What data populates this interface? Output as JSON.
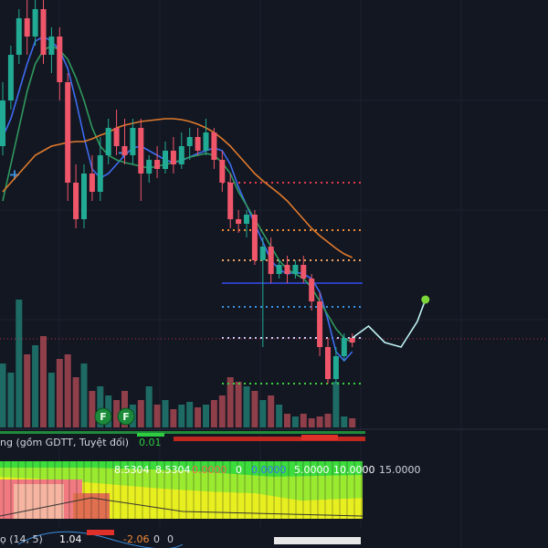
{
  "chart_data": {
    "type": "candlestick",
    "ylim": [
      0,
      600
    ],
    "candles": [
      [
        440,
        510,
        430,
        490
      ],
      [
        490,
        550,
        480,
        540
      ],
      [
        540,
        590,
        530,
        580
      ],
      [
        580,
        600,
        540,
        560
      ],
      [
        560,
        600,
        550,
        590
      ],
      [
        590,
        600,
        530,
        540
      ],
      [
        540,
        570,
        520,
        560
      ],
      [
        560,
        570,
        490,
        510
      ],
      [
        510,
        520,
        380,
        400
      ],
      [
        400,
        420,
        350,
        360
      ],
      [
        360,
        420,
        350,
        410
      ],
      [
        410,
        430,
        380,
        390
      ],
      [
        390,
        450,
        380,
        430
      ],
      [
        430,
        470,
        420,
        460
      ],
      [
        460,
        480,
        430,
        440
      ],
      [
        440,
        470,
        420,
        430
      ],
      [
        430,
        470,
        420,
        460
      ],
      [
        460,
        470,
        380,
        410
      ],
      [
        410,
        430,
        400,
        425
      ],
      [
        425,
        440,
        405,
        415
      ],
      [
        415,
        445,
        410,
        435
      ],
      [
        435,
        450,
        410,
        420
      ],
      [
        420,
        455,
        415,
        440
      ],
      [
        440,
        460,
        425,
        450
      ],
      [
        450,
        460,
        430,
        435
      ],
      [
        435,
        470,
        430,
        455
      ],
      [
        455,
        460,
        415,
        425
      ],
      [
        425,
        435,
        390,
        400
      ],
      [
        400,
        410,
        350,
        360
      ],
      [
        360,
        370,
        345,
        355
      ],
      [
        355,
        370,
        340,
        365
      ],
      [
        365,
        370,
        310,
        315
      ],
      [
        315,
        340,
        220,
        330
      ],
      [
        330,
        340,
        290,
        300
      ],
      [
        300,
        315,
        295,
        310
      ],
      [
        310,
        320,
        290,
        300
      ],
      [
        300,
        315,
        295,
        310
      ],
      [
        310,
        320,
        290,
        295
      ],
      [
        295,
        300,
        260,
        270
      ],
      [
        270,
        280,
        210,
        220
      ],
      [
        220,
        230,
        180,
        185
      ],
      [
        185,
        220,
        180,
        210
      ],
      [
        210,
        235,
        205,
        230
      ],
      [
        230,
        235,
        220,
        225
      ]
    ],
    "up_color": "#22ab94",
    "down_color": "#f0566a",
    "volume": [
      70,
      60,
      140,
      80,
      90,
      100,
      60,
      75,
      80,
      55,
      70,
      40,
      45,
      35,
      30,
      40,
      25,
      30,
      45,
      25,
      30,
      20,
      25,
      28,
      22,
      25,
      30,
      35,
      55,
      50,
      45,
      40,
      30,
      35,
      25,
      15,
      12,
      15,
      10,
      12,
      15,
      50,
      12,
      10
    ],
    "series": [
      {
        "color": "#3d6cf0",
        "values": [
          450,
          470,
          500,
          530,
          555,
          560,
          555,
          545,
          525,
          490,
          450,
          415,
          405,
          410,
          420,
          430,
          438,
          440,
          435,
          430,
          425,
          422,
          424,
          428,
          432,
          435,
          438,
          435,
          420,
          395,
          375,
          355,
          335,
          315,
          305,
          300,
          302,
          300,
          295,
          280,
          250,
          215,
          205,
          215
        ]
      },
      {
        "color": "#2f9a5e",
        "values": [
          380,
          420,
          460,
          500,
          530,
          545,
          550,
          545,
          535,
          515,
          490,
          460,
          440,
          430,
          425,
          422,
          420,
          418,
          416,
          418,
          420,
          422,
          425,
          428,
          430,
          432,
          430,
          422,
          410,
          390,
          375,
          360,
          345,
          330,
          315,
          305,
          300,
          295,
          285,
          270,
          255,
          240,
          230,
          225
        ]
      },
      {
        "color": "#e07a2c",
        "values": [
          390,
          400,
          410,
          420,
          430,
          435,
          440,
          442,
          444,
          445,
          445,
          448,
          452,
          455,
          460,
          463,
          465,
          467,
          468,
          469,
          470,
          470,
          469,
          467,
          464,
          460,
          455,
          448,
          440,
          430,
          420,
          410,
          402,
          395,
          388,
          380,
          370,
          360,
          350,
          342,
          335,
          328,
          322,
          318
        ]
      }
    ],
    "forecast": {
      "color": "#bff3f5",
      "x": [
        43,
        45,
        47,
        49,
        51,
        52
      ],
      "values": [
        230,
        243,
        225,
        220,
        248,
        272
      ]
    },
    "levels": [
      {
        "value": 400,
        "color": "#e23c4f"
      },
      {
        "value": 348,
        "color": "#f08a35"
      },
      {
        "value": 315,
        "color": "#f0a060"
      },
      {
        "value": 290,
        "color": "#2a3fb8"
      },
      {
        "value": 264,
        "color": "#3a8fe0"
      },
      {
        "value": 230,
        "color": "#c8d0ff"
      },
      {
        "value": 180,
        "color": "#3cd03c"
      }
    ],
    "last_price": 229,
    "markers": [
      "F",
      "F"
    ],
    "indicator_1": {
      "name": "ng (gồm GDTT, Tuyệt đối)",
      "value": "0.01"
    },
    "indicator_2": [
      "8.5304",
      "8.5304",
      "0.0000",
      "0",
      "0.0000",
      "5.0000",
      "10.0000",
      "15.0000"
    ],
    "indicator_3": {
      "name": "ọ (14, 5)",
      "values": [
        "1.04",
        "-2.06",
        "0",
        "0"
      ]
    }
  }
}
